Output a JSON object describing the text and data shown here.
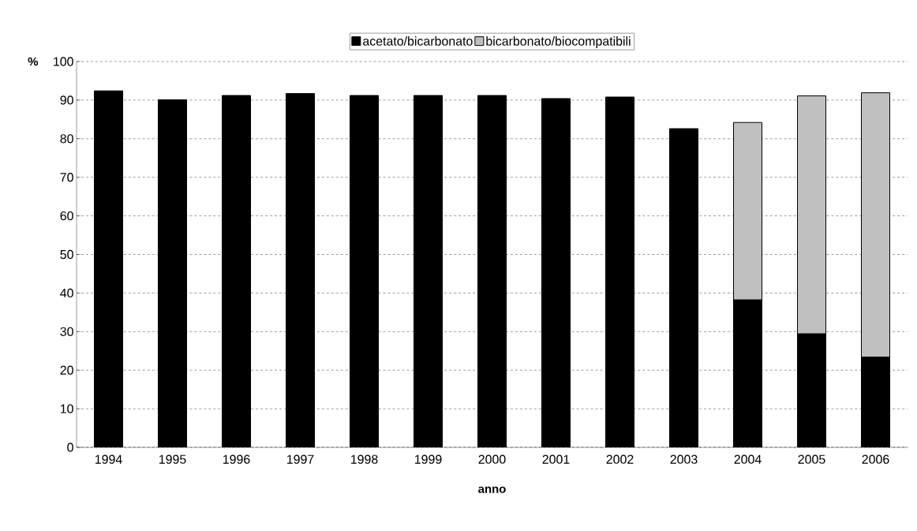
{
  "chart_data": {
    "type": "bar",
    "stacked": true,
    "xlabel": "anno",
    "ylabel": "%",
    "categories": [
      "1994",
      "1995",
      "1996",
      "1997",
      "1998",
      "1999",
      "2000",
      "2001",
      "2002",
      "2003",
      "2004",
      "2005",
      "2006"
    ],
    "series": [
      {
        "name": "acetato/bicarbonato",
        "color": "#000000",
        "values": [
          92.4,
          90.1,
          91.2,
          91.7,
          91.2,
          91.2,
          91.2,
          90.4,
          90.8,
          82.6,
          38.2,
          29.4,
          23.4
        ]
      },
      {
        "name": "bicarbonato/biocompatibili",
        "color": "#c0c0c0",
        "values": [
          null,
          null,
          null,
          null,
          null,
          null,
          null,
          null,
          null,
          null,
          46.0,
          61.7,
          68.5
        ]
      }
    ],
    "ylim": [
      0,
      100
    ],
    "yticks": [
      0,
      10,
      20,
      30,
      40,
      50,
      60,
      70,
      80,
      90,
      100
    ],
    "grid": "y",
    "legend": "top"
  }
}
